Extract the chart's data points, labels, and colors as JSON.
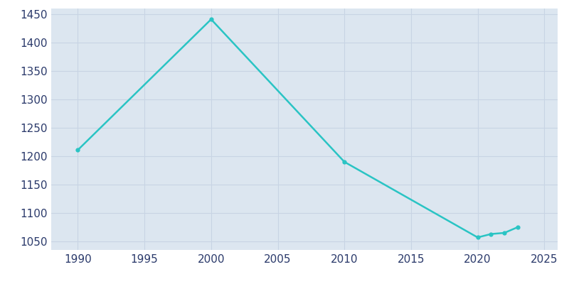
{
  "years": [
    1990,
    2000,
    2010,
    2020,
    2021,
    2022,
    2023
  ],
  "population": [
    1211,
    1441,
    1190,
    1057,
    1063,
    1065,
    1075
  ],
  "line_color": "#2ac4c4",
  "plot_bg_color": "#dce6f0",
  "figure_bg_color": "#ffffff",
  "grid_color": "#c8d4e4",
  "tick_color": "#2b3a6b",
  "xlim": [
    1988,
    2026
  ],
  "ylim": [
    1035,
    1460
  ],
  "xticks": [
    1990,
    1995,
    2000,
    2005,
    2010,
    2015,
    2020,
    2025
  ],
  "yticks": [
    1050,
    1100,
    1150,
    1200,
    1250,
    1300,
    1350,
    1400,
    1450
  ],
  "line_width": 1.8,
  "marker": "o",
  "marker_size": 3.5,
  "tick_fontsize": 11
}
